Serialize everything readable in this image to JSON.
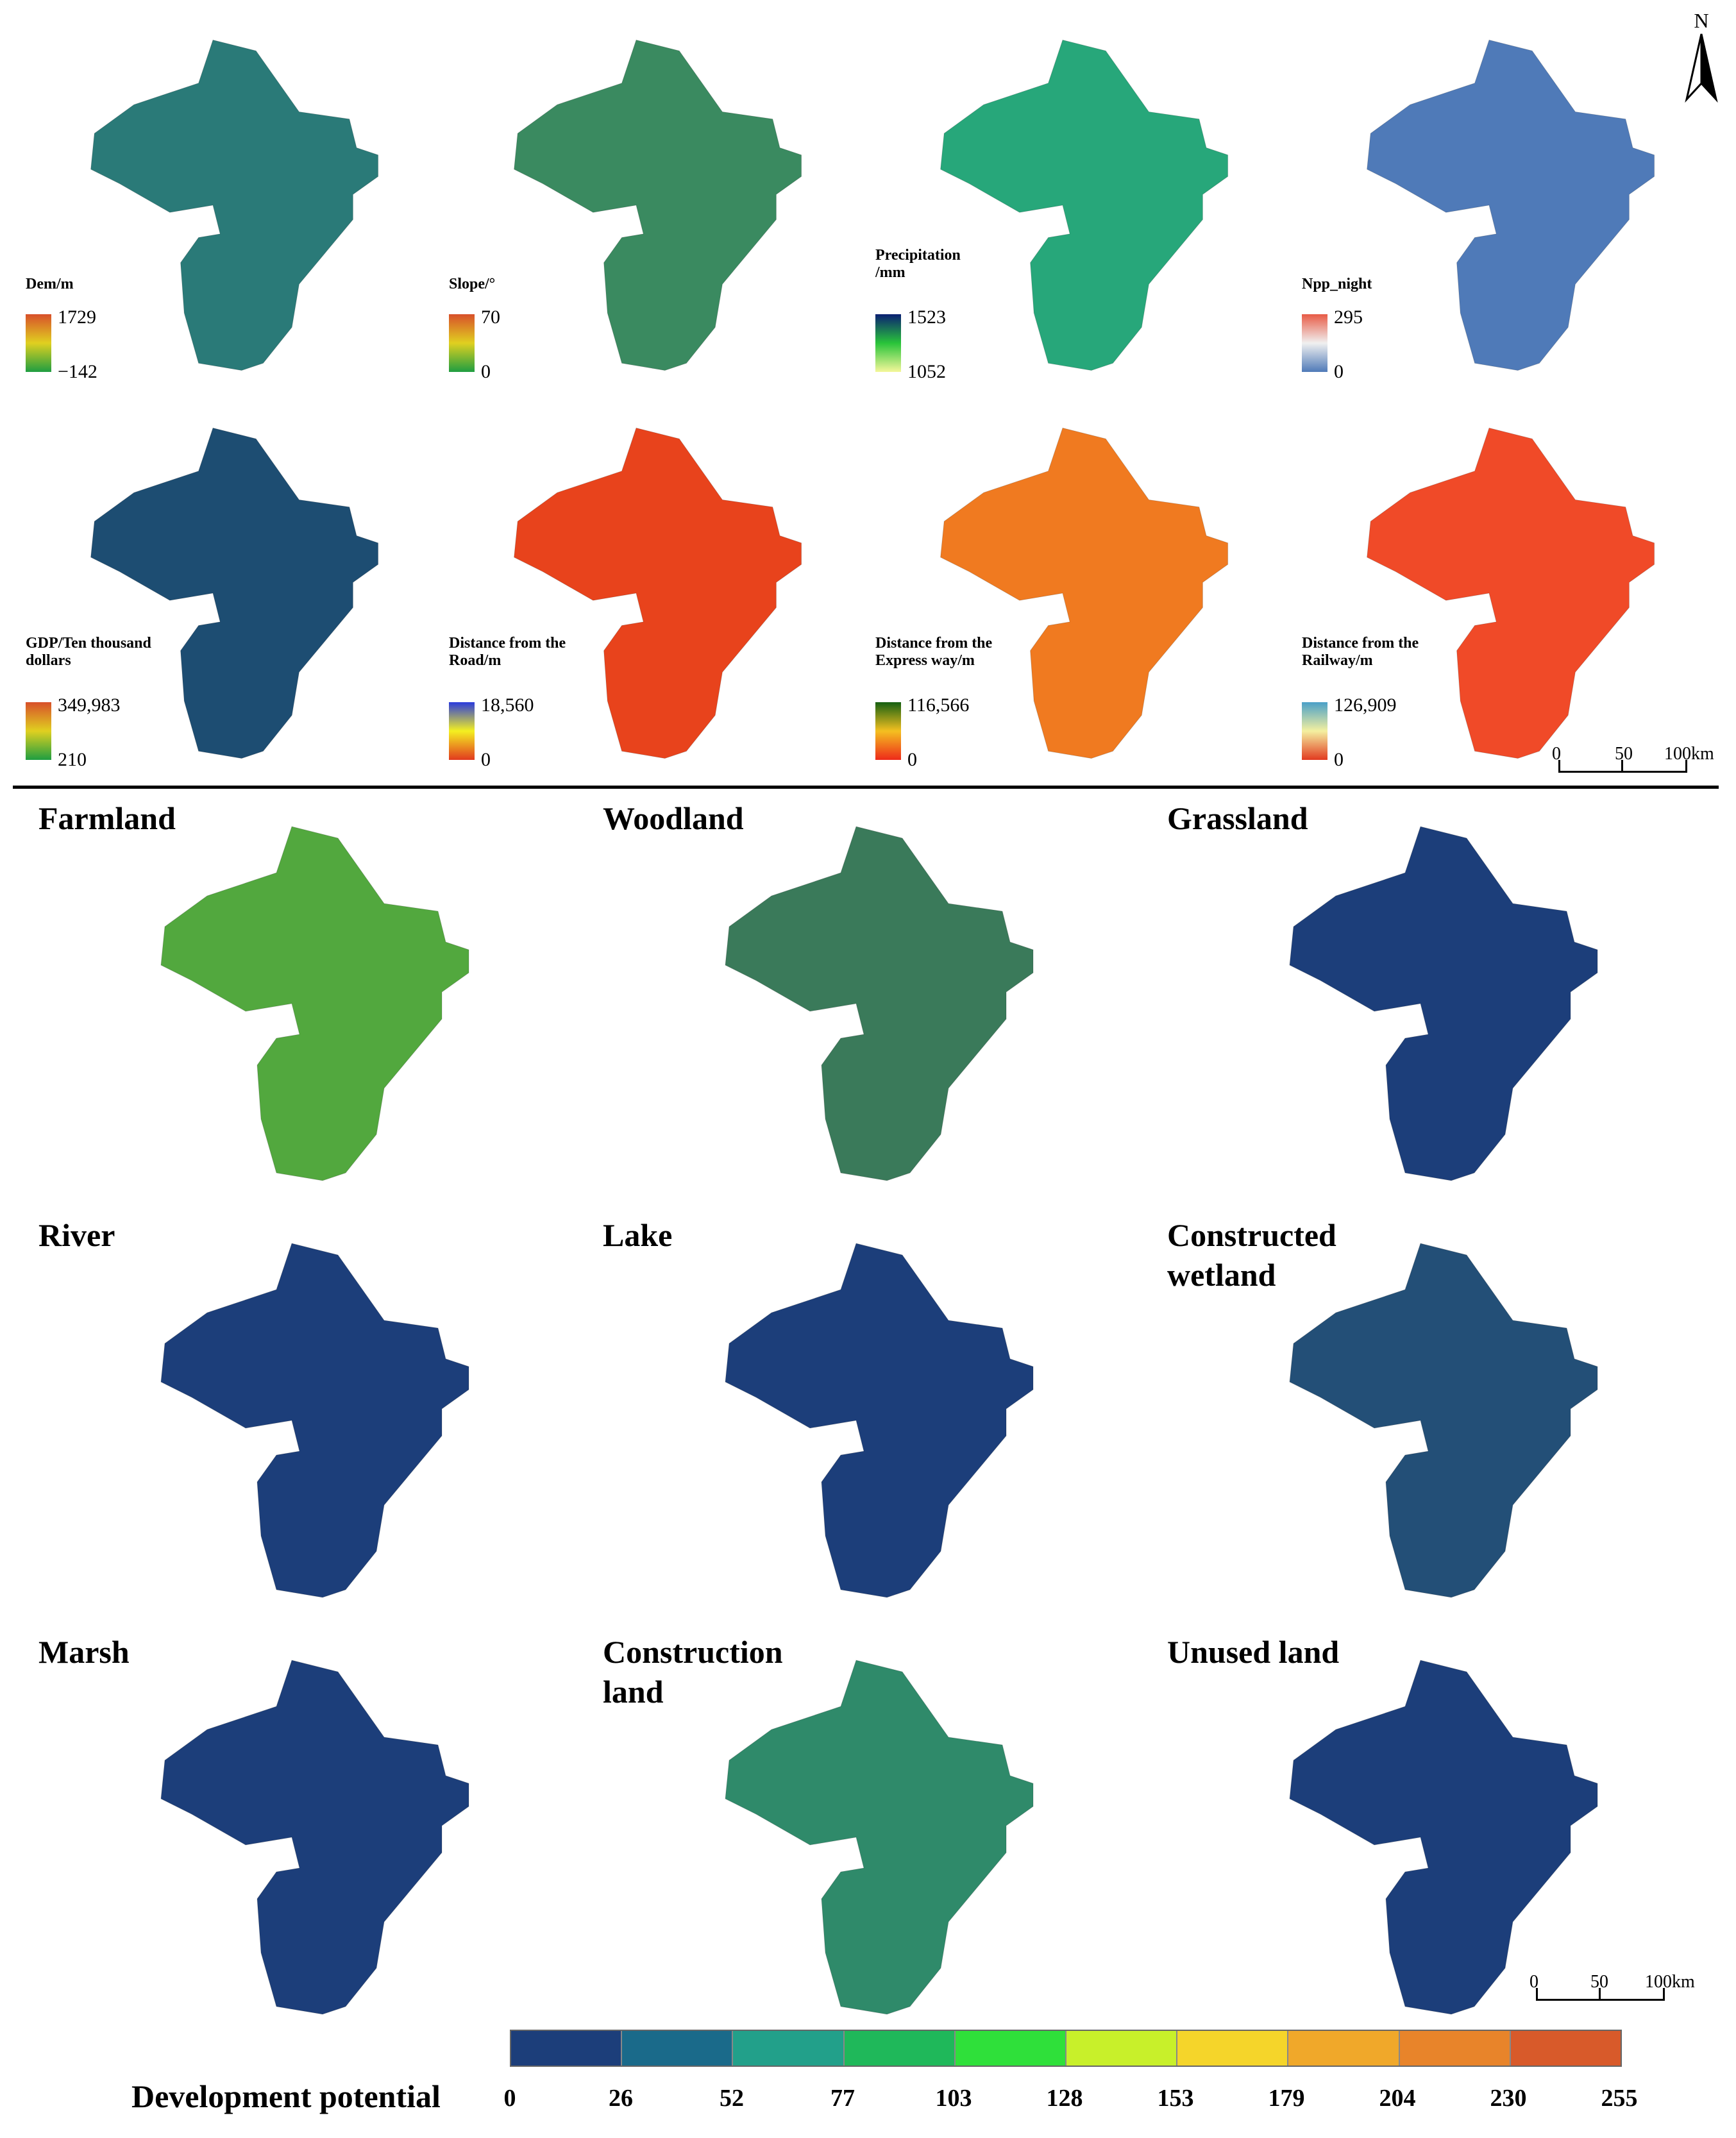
{
  "factors": [
    {
      "id": "dem",
      "label": [
        "Dem/m"
      ],
      "max": "1729",
      "min": "−142",
      "ramp": [
        "#1f9e41",
        "#e0d020",
        "#d8502a"
      ],
      "fill": "#2a7a78"
    },
    {
      "id": "slope",
      "label": [
        "Slope/°"
      ],
      "max": "70",
      "min": "0",
      "ramp": [
        "#1f9e41",
        "#e0d020",
        "#d8502a"
      ],
      "fill": "#3a8a60"
    },
    {
      "id": "precip",
      "label": [
        "Precipitation",
        "/mm"
      ],
      "max": "1523",
      "min": "1052",
      "ramp": [
        "#f4f79a",
        "#29c43a",
        "#0a1f73"
      ],
      "fill": "#27a77a"
    },
    {
      "id": "npp",
      "label": [
        "Npp_night"
      ],
      "max": "295",
      "min": "0",
      "ramp": [
        "#4f7ab8",
        "#f0f0f0",
        "#e85b46"
      ],
      "fill": "#4f7ab8"
    },
    {
      "id": "gdp",
      "label": [
        "GDP/Ten thousand",
        "dollars"
      ],
      "max": "349,983",
      "min": "210",
      "ramp": [
        "#1f9e41",
        "#e0d020",
        "#d8502a"
      ],
      "fill": "#1d4d72"
    },
    {
      "id": "road",
      "label": [
        "Distance from the",
        "Road/m"
      ],
      "max": "18,560",
      "min": "0",
      "ramp": [
        "#e23a1f",
        "#f4f020",
        "#2a3bdd"
      ],
      "fill": "#e8431c"
    },
    {
      "id": "express",
      "label": [
        "Distance from the",
        "Express way/m"
      ],
      "max": "116,566",
      "min": "0",
      "ramp": [
        "#ee2a1a",
        "#f4c020",
        "#156012"
      ],
      "fill": "#f07a20"
    },
    {
      "id": "railway",
      "label": [
        "Distance from the",
        "Railway/m"
      ],
      "max": "126,909",
      "min": "0",
      "ramp": [
        "#e23a1f",
        "#f4f0a0",
        "#4aa0c8"
      ],
      "fill": "#f04a28"
    }
  ],
  "landuse": [
    {
      "id": "farmland",
      "label": [
        "Farmland"
      ],
      "fill": "#52a83e"
    },
    {
      "id": "woodland",
      "label": [
        "Woodland"
      ],
      "fill": "#3a7a5a"
    },
    {
      "id": "grassland",
      "label": [
        "Grassland"
      ],
      "fill": "#1c3e7a"
    },
    {
      "id": "river",
      "label": [
        "River"
      ],
      "fill": "#1c3e7a"
    },
    {
      "id": "lake",
      "label": [
        "Lake"
      ],
      "fill": "#1c3e7a"
    },
    {
      "id": "constructed-wetland",
      "label": [
        "Constructed",
        "wetland"
      ],
      "fill": "#234f77"
    },
    {
      "id": "marsh",
      "label": [
        "Marsh"
      ],
      "fill": "#1c3e7a"
    },
    {
      "id": "construction-land",
      "label": [
        "Construction",
        "land"
      ],
      "fill": "#2f8a6a"
    },
    {
      "id": "unused-land",
      "label": [
        "Unused land"
      ],
      "fill": "#1c3e7a"
    }
  ],
  "north_label": "N",
  "scale_top": {
    "labels": [
      "0",
      "50",
      "100km"
    ]
  },
  "scale_bottom": {
    "labels": [
      "0",
      "50",
      "100km"
    ]
  },
  "legend": {
    "title": "Development potential",
    "ticks": [
      "0",
      "26",
      "52",
      "77",
      "103",
      "128",
      "153",
      "179",
      "204",
      "230",
      "255"
    ],
    "colors": [
      "#1c3e7a",
      "#1a6a8a",
      "#22a08a",
      "#1fb85a",
      "#2fe03a",
      "#c8f02a",
      "#f5d52a",
      "#f0a82a",
      "#e8842a",
      "#d85a2a",
      "#c84034"
    ]
  }
}
